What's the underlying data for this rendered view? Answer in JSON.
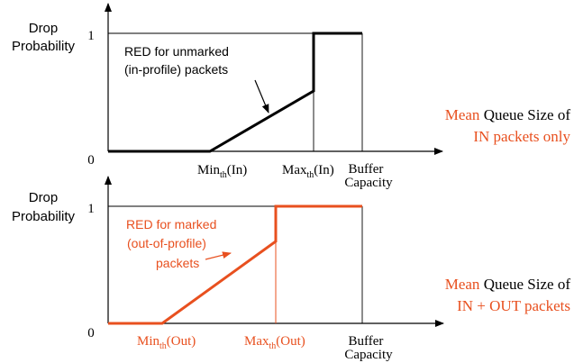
{
  "colors": {
    "black": "#000000",
    "red": "#e8501f",
    "ink": "#000000"
  },
  "top": {
    "ylabel_line1": "Drop",
    "ylabel_line2": "Probability",
    "tick_one": "1",
    "tick_zero": "0",
    "annotation_line1": "RED for unmarked",
    "annotation_line2": "(in-profile) packets",
    "min_base": "Min",
    "min_sub": "th",
    "min_tail": "(In)",
    "max_base": "Max",
    "max_sub": "th",
    "max_tail": "(In)",
    "buffer_line1": "Buffer",
    "buffer_line2": "Capacity",
    "xlabel_mean": "Mean",
    "xlabel_rest": " Queue Size of",
    "xlabel_line2": "IN packets only"
  },
  "bottom": {
    "ylabel_line1": "Drop",
    "ylabel_line2": "Probability",
    "tick_one": "1",
    "tick_zero": "0",
    "annotation_line1": "RED for marked",
    "annotation_line2": "(out-of-profile)",
    "annotation_line3": "packets",
    "min_base": "Min",
    "min_sub": "th",
    "min_tail": "(Out)",
    "max_base": "Max",
    "max_sub": "th",
    "max_tail": "(Out)",
    "buffer_line1": "Buffer",
    "buffer_line2": "Capacity",
    "xlabel_mean": "Mean",
    "xlabel_rest": " Queue Size of",
    "xlabel_line2": "IN + OUT packets"
  }
}
